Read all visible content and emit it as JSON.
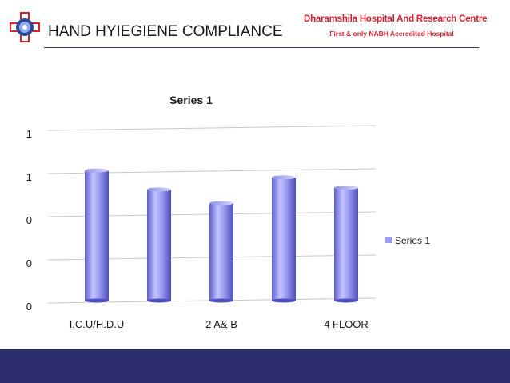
{
  "slide": {
    "title": "HAND HYIEGIENE COMPLIANCE",
    "hospital_name": "Dharamshila Hospital And Research Centre",
    "hospital_tagline": "First & only NABH Accredited Hospital"
  },
  "colors": {
    "bar": "#9a9cf2",
    "accent_red": "#d8202e",
    "footer": "#2b2d6e",
    "logo_blue": "#2a4c9c"
  },
  "chart_data": {
    "type": "bar",
    "title": "Series 1",
    "categories": [
      "I.C.U/H.D.U",
      "",
      "2 A& B",
      "",
      "4 FLOOR"
    ],
    "series": [
      {
        "name": "Series 1",
        "values": [
          0.74,
          0.63,
          0.55,
          0.7,
          0.64
        ]
      }
    ],
    "ylim": [
      0,
      1
    ],
    "y_ticks": [
      0,
      0.25,
      0.5,
      0.75,
      1
    ],
    "y_tick_labels": [
      "0",
      "0",
      "0",
      "1",
      "1"
    ],
    "grid": true,
    "legend": "right"
  }
}
